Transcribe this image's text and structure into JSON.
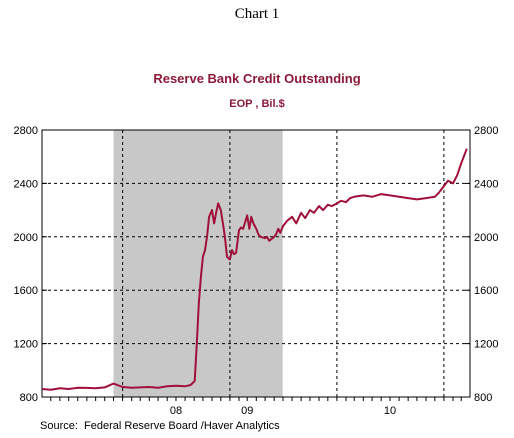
{
  "page_heading": "Chart 1",
  "source_note": "Source:  Federal Reserve Board /Haver Analytics",
  "colors": {
    "line": "#a0103a",
    "recession": "#c8c8c8",
    "title": "#8b1a3a"
  },
  "chart_data": {
    "type": "line",
    "title": "Reserve Bank Credit Outstanding",
    "subtitle": "EOP , Bil.$",
    "xlabel": "",
    "ylabel": "",
    "ylim": [
      800,
      2800
    ],
    "y_ticks": [
      800,
      1200,
      1600,
      2000,
      2400,
      2800
    ],
    "y_tick_labels": [
      "800",
      "1200",
      "1600",
      "2000",
      "2400",
      "2800"
    ],
    "xlim": [
      "2007-04-01",
      "2011-03-31"
    ],
    "x_year_labels": [
      {
        "label": "08",
        "at": "2008-07-01"
      },
      {
        "label": "09",
        "at": "2009-03-01"
      },
      {
        "label": "10",
        "at": "2010-07-01"
      }
    ],
    "vertical_gridlines": [
      "2008-01-01",
      "2009-01-01",
      "2010-01-01",
      "2011-01-01"
    ],
    "horizontal_gridlines": [
      1200,
      1600,
      2000,
      2400
    ],
    "grid": true,
    "legend": "none",
    "shaded_periods": [
      {
        "label": "recession",
        "start": "2007-12-01",
        "end": "2009-06-30"
      }
    ],
    "series": [
      {
        "name": "",
        "x": [
          "2007-04-01",
          "2007-05-01",
          "2007-06-01",
          "2007-07-01",
          "2007-08-01",
          "2007-09-01",
          "2007-10-01",
          "2007-11-01",
          "2007-12-01",
          "2008-01-01",
          "2008-02-01",
          "2008-03-01",
          "2008-04-01",
          "2008-05-01",
          "2008-06-01",
          "2008-07-01",
          "2008-08-01",
          "2008-08-20",
          "2008-09-03",
          "2008-09-10",
          "2008-09-17",
          "2008-09-24",
          "2008-10-01",
          "2008-10-08",
          "2008-10-15",
          "2008-10-22",
          "2008-11-01",
          "2008-11-08",
          "2008-11-15",
          "2008-11-22",
          "2008-12-01",
          "2008-12-08",
          "2008-12-15",
          "2008-12-22",
          "2009-01-01",
          "2009-01-08",
          "2009-01-15",
          "2009-01-22",
          "2009-02-01",
          "2009-02-08",
          "2009-02-15",
          "2009-03-01",
          "2009-03-08",
          "2009-03-15",
          "2009-03-22",
          "2009-04-01",
          "2009-04-08",
          "2009-04-15",
          "2009-05-01",
          "2009-05-08",
          "2009-05-15",
          "2009-06-01",
          "2009-06-08",
          "2009-06-15",
          "2009-06-22",
          "2009-07-01",
          "2009-07-15",
          "2009-08-01",
          "2009-08-15",
          "2009-09-01",
          "2009-09-15",
          "2009-10-01",
          "2009-10-15",
          "2009-11-01",
          "2009-11-15",
          "2009-12-01",
          "2009-12-15",
          "2010-01-01",
          "2010-01-15",
          "2010-02-01",
          "2010-02-15",
          "2010-03-01",
          "2010-04-01",
          "2010-05-01",
          "2010-06-01",
          "2010-07-01",
          "2010-08-01",
          "2010-09-01",
          "2010-10-01",
          "2010-11-01",
          "2010-12-01",
          "2010-12-15",
          "2011-01-01",
          "2011-01-15",
          "2011-02-01",
          "2011-02-15",
          "2011-03-01",
          "2011-03-20"
        ],
        "y": [
          860,
          855,
          865,
          860,
          870,
          868,
          865,
          872,
          900,
          875,
          870,
          872,
          875,
          870,
          880,
          885,
          880,
          890,
          920,
          1200,
          1500,
          1700,
          1850,
          1900,
          2000,
          2150,
          2200,
          2100,
          2180,
          2250,
          2200,
          2100,
          2000,
          1850,
          1830,
          1900,
          1870,
          1880,
          2050,
          2070,
          2060,
          2160,
          2060,
          2150,
          2100,
          2060,
          2020,
          2000,
          1990,
          2000,
          1970,
          2000,
          2020,
          2060,
          2030,
          2080,
          2120,
          2150,
          2100,
          2180,
          2140,
          2200,
          2180,
          2230,
          2200,
          2240,
          2230,
          2250,
          2270,
          2260,
          2290,
          2300,
          2310,
          2300,
          2320,
          2310,
          2300,
          2290,
          2280,
          2290,
          2300,
          2330,
          2380,
          2420,
          2400,
          2460,
          2550,
          2660
        ]
      }
    ]
  }
}
